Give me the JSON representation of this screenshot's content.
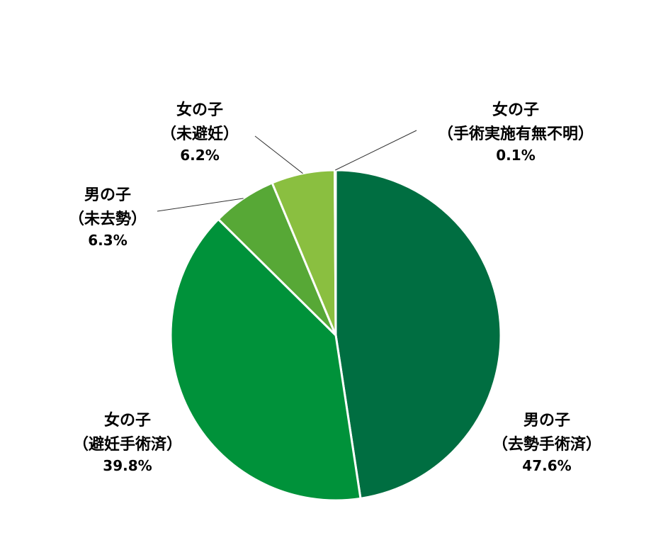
{
  "chart_data": {
    "type": "pie",
    "title": "",
    "legend": "none",
    "start_angle_deg": 0,
    "direction": "clockwise",
    "slices": [
      {
        "line1": "男の子",
        "line2": "（去勢手術済）",
        "value": 47.6,
        "value_label": "47.6%",
        "color": "#006E41"
      },
      {
        "line1": "女の子",
        "line2": "（避妊手術済）",
        "value": 39.8,
        "value_label": "39.8%",
        "color": "#00923A"
      },
      {
        "line1": "男の子",
        "line2": "（未去勢）",
        "value": 6.3,
        "value_label": "6.3%",
        "color": "#57A836"
      },
      {
        "line1": "女の子",
        "line2": "（未避妊）",
        "value": 6.2,
        "value_label": "6.2%",
        "color": "#8ABF40"
      },
      {
        "line1": "女の子",
        "line2": "（手術実施有無不明）",
        "value": 0.1,
        "value_label": "0.1%",
        "color": "#C5E1A5"
      }
    ]
  }
}
